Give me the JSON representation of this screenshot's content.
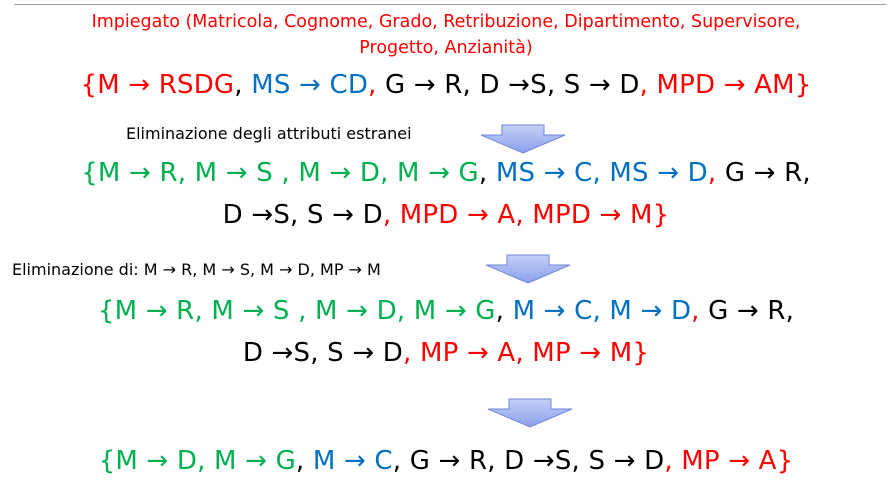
{
  "colors": {
    "red": "#ff0000",
    "green": "#00b050",
    "blue": "#0070c0",
    "black": "#000000",
    "arrow_fill": "#a7b8f2"
  },
  "header": {
    "line1": "Impiegato (Matricola, Cognome, Grado, Retribuzione, Dipartimento, Supervisore,",
    "line2": "Progetto, Anzianità)"
  },
  "formulas": {
    "f1": [
      "{M → RSDG",
      ", ",
      "MS → CD",
      ", ",
      "G → R, D →S, S → D",
      ", ",
      "MPD → AM}"
    ],
    "f2a": [
      "{M → R, M → S , M → D, M → G",
      ", ",
      "MS → C, MS → D",
      ", ",
      "G → R,"
    ],
    "f2b": [
      "D →S, S → D",
      ", ",
      "MPD → A, MPD → M}"
    ],
    "f3a": [
      "{M → R, M → S , M → D, M → G",
      ", ",
      "M → C, M → D",
      ", ",
      "G → R,"
    ],
    "f3b": [
      "D →S, S → D",
      ", ",
      "MP → A, MP → M}"
    ],
    "f4": [
      "{M → D, M → G",
      ", ",
      "M → C",
      ", ",
      "G → R, D →S, S → D",
      ",  ",
      "MP → A}"
    ]
  },
  "notes": {
    "step1": "Eliminazione degli attributi estranei",
    "step2": "Eliminazione di: M → R, M → S, M → D, MP → M"
  },
  "icons": {
    "down_arrow": "down-arrow-icon"
  }
}
